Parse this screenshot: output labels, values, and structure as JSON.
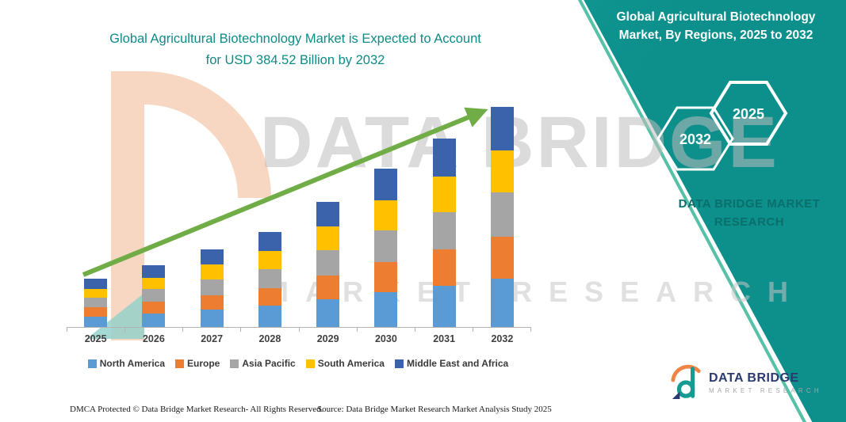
{
  "page_title": {
    "line1": "Global Agricultural Biotechnology Market is Expected to Account",
    "line2": "for USD 384.52 Billion by 2032"
  },
  "ribbon": {
    "title": "Global Agricultural Biotechnology Market, By Regions, 2025 to 2032",
    "hexagon_back_label": "2032",
    "hexagon_front_label": "2025",
    "brand_text": "DATA BRIDGE MARKET\nRESEARCH"
  },
  "watermark": {
    "brand_top": "DATA BRIDGE",
    "brand_bottom": "MARKET RESEARCH"
  },
  "footer": {
    "dmca": "DMCA Protected © Data Bridge Market Research-  All Rights Reserved.",
    "source": "Source: Data Bridge Market Research  Market Analysis Study 2025"
  },
  "logo": {
    "title": "DATA BRIDGE",
    "subtitle": "MARKET RESEARCH"
  },
  "colors": {
    "teal_light": "#1ab0a2",
    "teal_dark": "#0d8f8c",
    "accent_line": "#55c1a7",
    "arrow_green": "#70AD47",
    "title_teal": "#0f8b87",
    "brand_navy": "#2c3a72",
    "brand_gray": "#a7a7a7",
    "axis_gray": "#b3b3b3"
  },
  "chart_data": {
    "type": "bar",
    "stacked": true,
    "title": "Global Agricultural Biotechnology Market is Expected to Account for USD 384.52 Billion by 2032",
    "unit": "USD Billion",
    "categories": [
      "2025",
      "2026",
      "2027",
      "2028",
      "2029",
      "2030",
      "2031",
      "2032"
    ],
    "series": [
      {
        "name": "North America",
        "color": "#5B9BD5",
        "values": [
          18,
          24,
          30,
          37,
          48,
          61,
          72,
          85
        ]
      },
      {
        "name": "Europe",
        "color": "#ED7D31",
        "values": [
          16,
          20,
          26,
          31,
          42,
          53,
          63,
          73
        ]
      },
      {
        "name": "Asia Pacific",
        "color": "#A5A5A5",
        "values": [
          17,
          22,
          27,
          33,
          44,
          55,
          66,
          77
        ]
      },
      {
        "name": "South America",
        "color": "#FFC000",
        "values": [
          16,
          20,
          26,
          32,
          42,
          53,
          62,
          73
        ]
      },
      {
        "name": "Middle East and Africa",
        "color": "#3B63AC",
        "values": [
          17,
          22,
          27,
          33,
          43,
          55,
          66,
          76.52
        ]
      }
    ],
    "estimated_totals": [
      84,
      108,
      136,
      166,
      219,
      277,
      329,
      384.52
    ],
    "highlighted_value": 384.52,
    "value_axis_visible": false,
    "trend_arrow": true,
    "legend_position": "bottom",
    "xlabel": "",
    "ylabel": ""
  }
}
